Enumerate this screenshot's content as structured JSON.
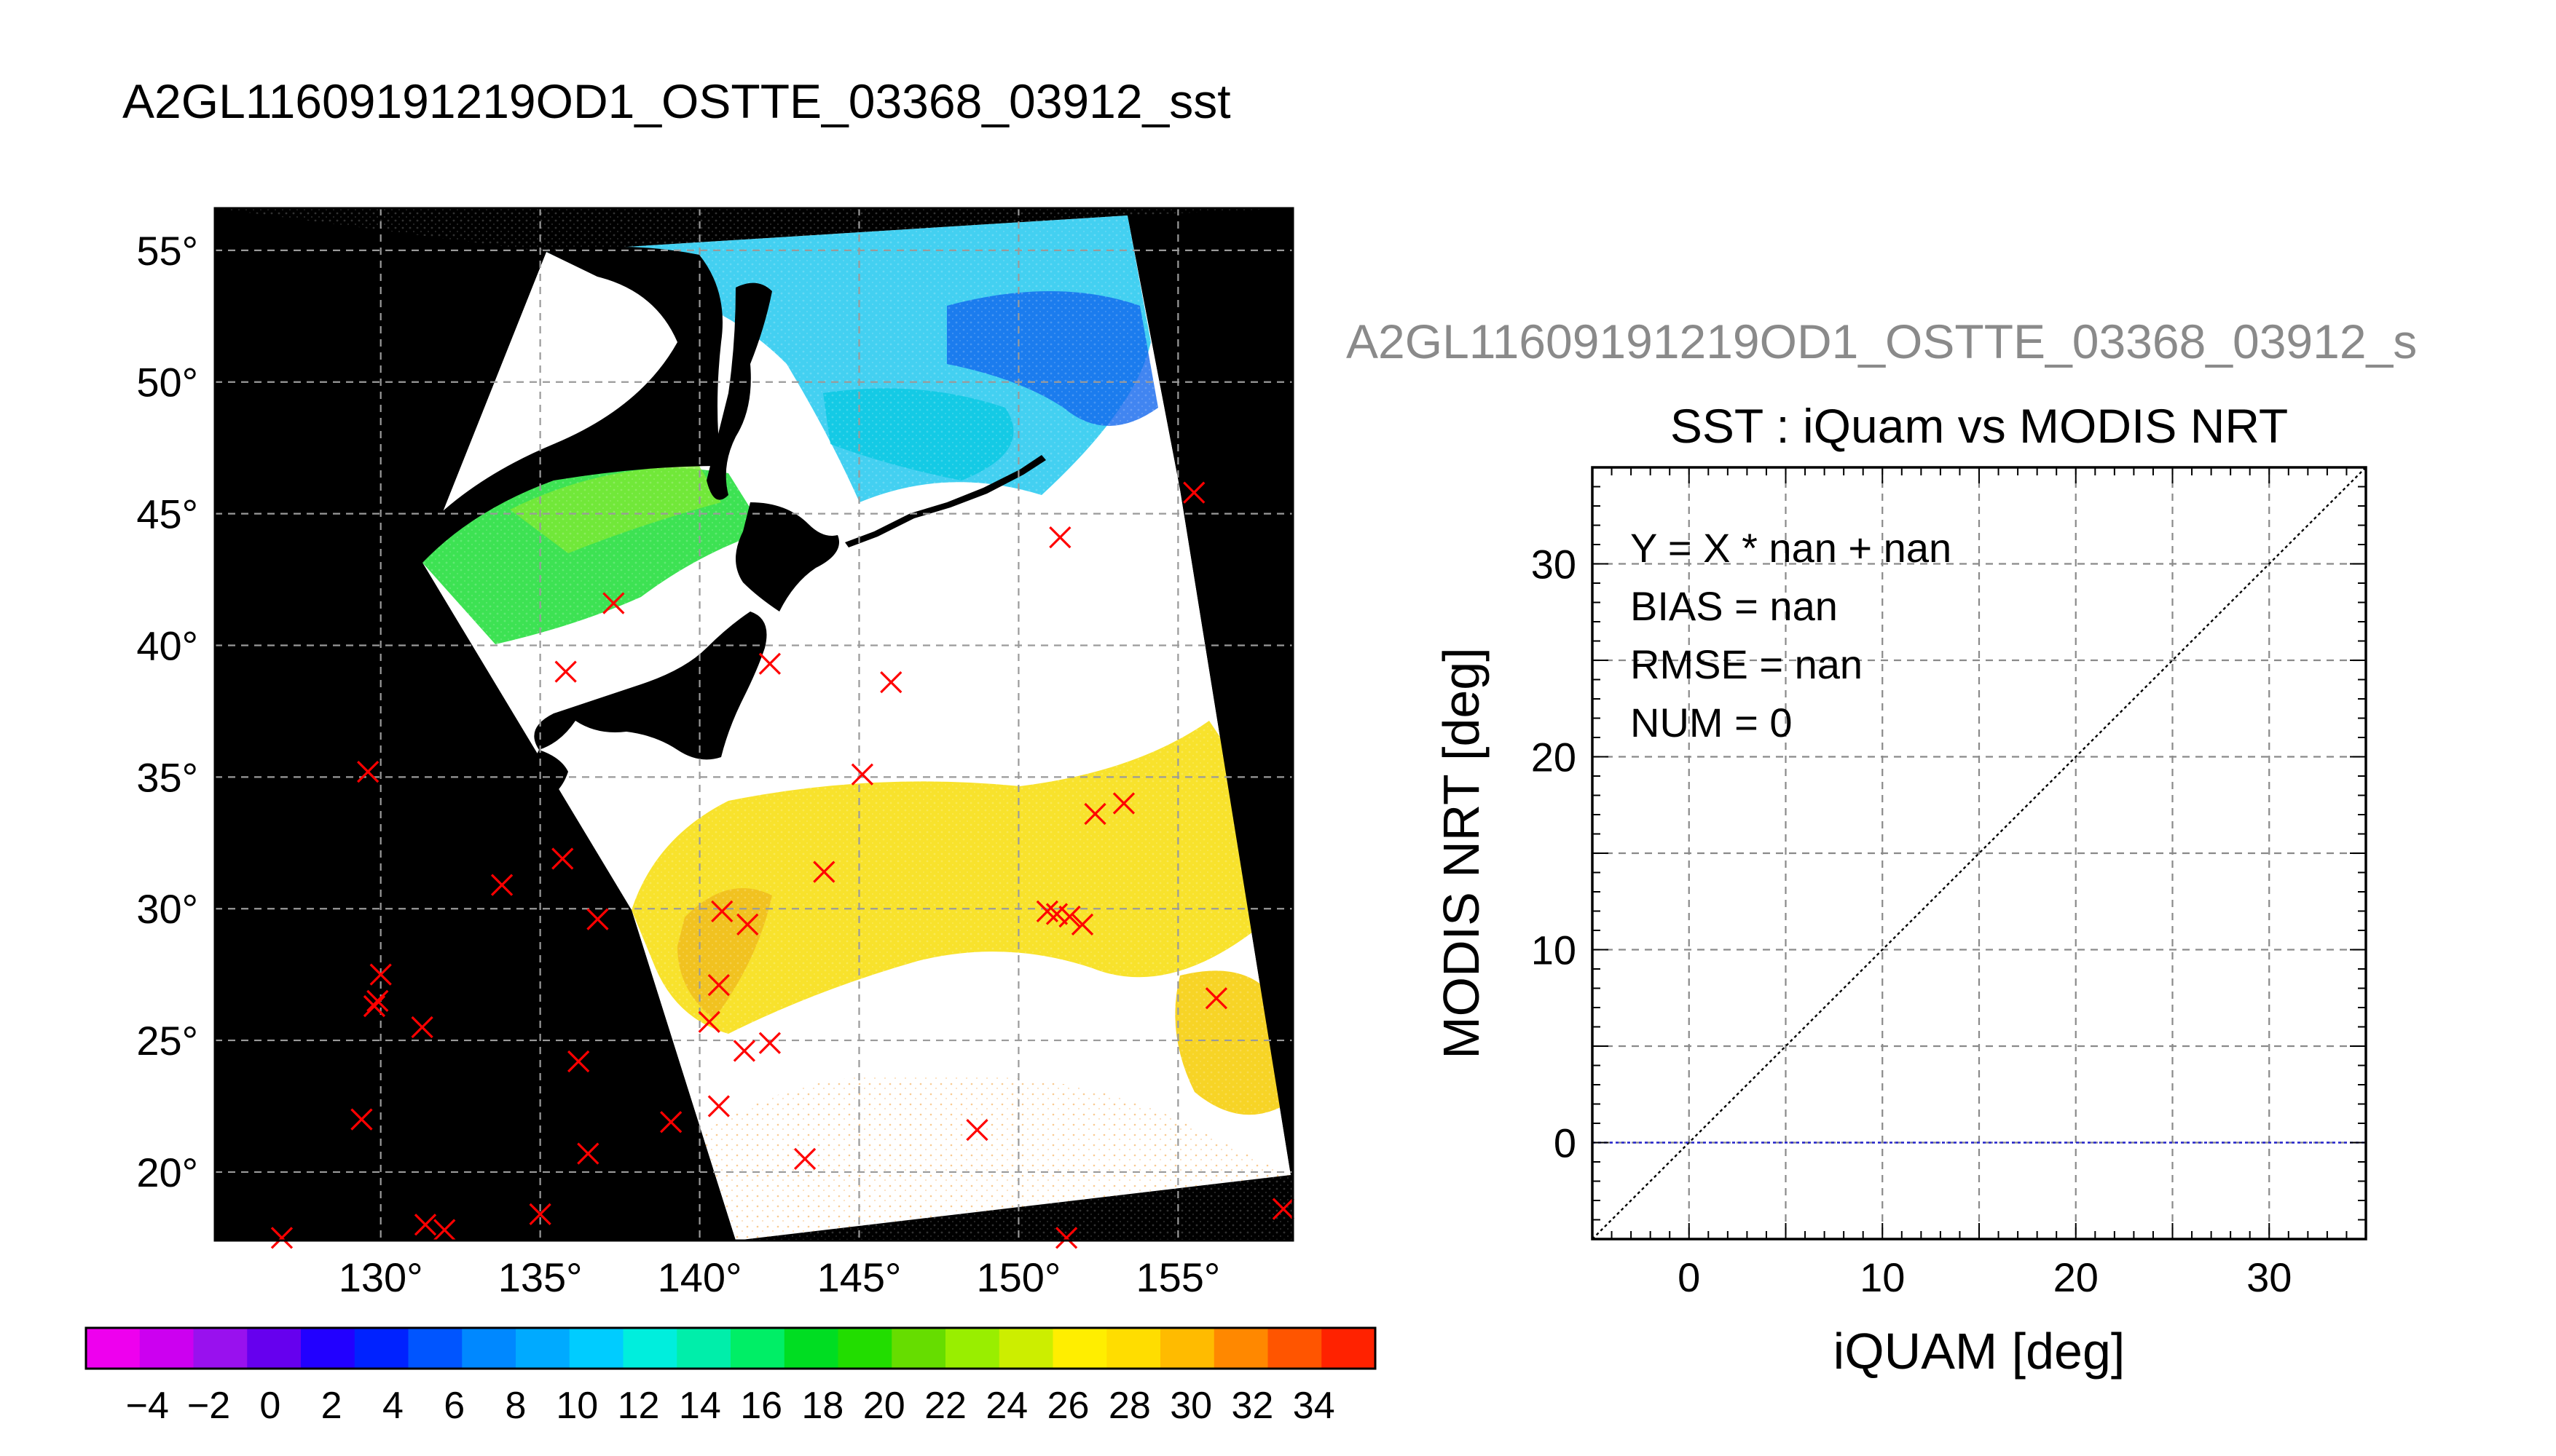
{
  "figure": {
    "title": "A2GL11609191219OD1_OSTTE_03368_03912_sst",
    "scatter_title_gray": "A2GL11609191219OD1_OSTTE_03368_03912_s"
  },
  "colors": {
    "land": "#000000",
    "marker": "#ff0000",
    "bias_line": "#2222cc",
    "gray_title": "#8a8a8a"
  },
  "colorbar": {
    "tick_labels": [
      "−4",
      "−2",
      "0",
      "2",
      "4",
      "6",
      "8",
      "10",
      "12",
      "14",
      "16",
      "18",
      "20",
      "22",
      "24",
      "26",
      "28",
      "30",
      "32",
      "34"
    ],
    "colors": [
      "#ee00ee",
      "#cc00f0",
      "#9911ee",
      "#6600ee",
      "#2200ff",
      "#0022ff",
      "#0055ff",
      "#0088ff",
      "#00aaff",
      "#00ccff",
      "#00eedd",
      "#00eeaa",
      "#00ee66",
      "#00dd22",
      "#22dd00",
      "#66dd00",
      "#99ee00",
      "#ccee00",
      "#ffee00",
      "#ffdd00",
      "#ffbb00",
      "#ff8800",
      "#ff5500",
      "#ff2200"
    ]
  },
  "chart_data": [
    {
      "type": "map",
      "lon_ticks": [
        "130°",
        "135°",
        "140°",
        "145°",
        "150°",
        "155°"
      ],
      "lat_ticks": [
        "55°",
        "50°",
        "45°",
        "40°",
        "35°",
        "30°",
        "25°",
        "20°"
      ],
      "lon_range": [
        124.8,
        158.6
      ],
      "lat_range": [
        17.4,
        56.6
      ],
      "grid": true,
      "markers": [
        [
          155.5,
          45.8
        ],
        [
          151.3,
          44.1
        ],
        [
          137.3,
          41.6
        ],
        [
          135.8,
          39
        ],
        [
          142.2,
          39.3
        ],
        [
          146,
          38.6
        ],
        [
          129.6,
          35.2
        ],
        [
          145.1,
          35.1
        ],
        [
          152.4,
          33.6
        ],
        [
          153.3,
          34
        ],
        [
          135.7,
          31.9
        ],
        [
          143.9,
          31.4
        ],
        [
          133.8,
          30.9
        ],
        [
          136.8,
          29.6
        ],
        [
          140.7,
          29.9
        ],
        [
          141.5,
          29.4
        ],
        [
          150.9,
          29.9
        ],
        [
          151.2,
          29.8
        ],
        [
          151.6,
          29.7
        ],
        [
          152,
          29.4
        ],
        [
          130,
          27.5
        ],
        [
          129.8,
          26.3
        ],
        [
          129.9,
          26.5
        ],
        [
          140.6,
          27.1
        ],
        [
          131.3,
          25.5
        ],
        [
          140.3,
          25.7
        ],
        [
          141.4,
          24.6
        ],
        [
          142.2,
          24.9
        ],
        [
          156.2,
          26.6
        ],
        [
          136.2,
          24.2
        ],
        [
          140.6,
          22.5
        ],
        [
          139.1,
          21.9
        ],
        [
          148.7,
          21.6
        ],
        [
          129.4,
          22
        ],
        [
          136.5,
          20.7
        ],
        [
          143.3,
          20.5
        ],
        [
          135,
          18.4
        ],
        [
          131.4,
          18
        ],
        [
          132,
          17.8
        ],
        [
          126.9,
          17.5
        ],
        [
          151.5,
          17.5
        ],
        [
          158.3,
          18.6
        ]
      ]
    },
    {
      "type": "scatter",
      "title": "SST : iQuam vs MODIS NRT",
      "xlabel": "iQUAM [deg]",
      "ylabel": "MODIS NRT [deg]",
      "xlim": [
        -5,
        35
      ],
      "ylim": [
        -5,
        35
      ],
      "x_ticks": [
        0,
        10,
        20,
        30
      ],
      "y_ticks": [
        0,
        10,
        20,
        30
      ],
      "grid": true,
      "points": [],
      "reference_lines": [
        "Y = X",
        "Y = 0"
      ],
      "stats": {
        "equation": "Y = X * nan + nan",
        "bias": "BIAS = nan",
        "rmse": "RMSE = nan",
        "num": "NUM = 0"
      }
    }
  ]
}
